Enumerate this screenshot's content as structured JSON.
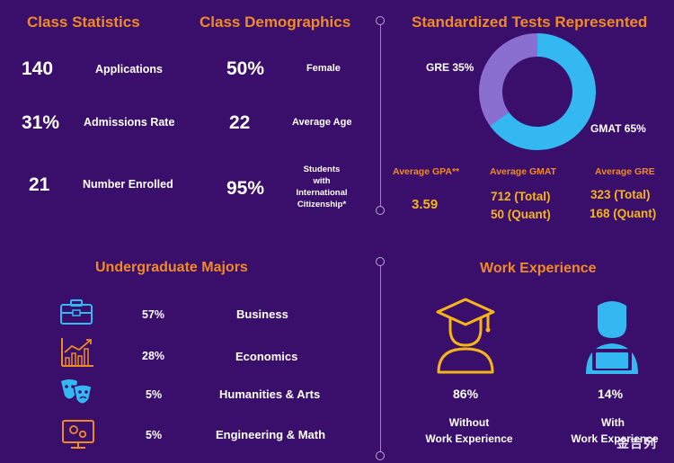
{
  "class_statistics": {
    "title": "Class Statistics",
    "rows": [
      {
        "value": "140",
        "label": "Applications"
      },
      {
        "value": "31%",
        "label": "Admissions Rate"
      },
      {
        "value": "21",
        "label": "Number Enrolled"
      }
    ]
  },
  "class_demographics": {
    "title": "Class Demographics",
    "rows": [
      {
        "value": "50%",
        "label": "Female"
      },
      {
        "value": "22",
        "label": "Average Age"
      },
      {
        "value": "95%",
        "label_lines": [
          "Students",
          "with",
          "International",
          "Citizenship*"
        ]
      }
    ]
  },
  "tests": {
    "title": "Standardized Tests Represented",
    "gre_label": "GRE 35%",
    "gmat_label": "GMAT 65%",
    "gre_share": 35,
    "gmat_share": 65,
    "gre_color": "#8a6fd1",
    "gmat_color": "#33b8f2",
    "columns": [
      {
        "header": "Average GPA**",
        "line1": "3.59",
        "line2": ""
      },
      {
        "header": "Average GMAT",
        "line1": "712 (Total)",
        "line2": "50 (Quant)"
      },
      {
        "header": "Average GRE",
        "line1": "323 (Total)",
        "line2": "168 (Quant)"
      }
    ]
  },
  "majors": {
    "title": "Undergraduate Majors",
    "rows": [
      {
        "icon": "briefcase-icon",
        "percent": "57%",
        "label": "Business"
      },
      {
        "icon": "bar-chart-icon",
        "percent": "28%",
        "label": "Economics"
      },
      {
        "icon": "theater-masks-icon",
        "percent": "5%",
        "label": "Humanities & Arts"
      },
      {
        "icon": "monitor-gears-icon",
        "percent": "5%",
        "label": "Engineering & Math"
      }
    ]
  },
  "work": {
    "title": "Work Experience",
    "items": [
      {
        "icon": "graduate-icon",
        "percent": "86%",
        "line1": "Without",
        "line2": "Work Experience"
      },
      {
        "icon": "professional-laptop-icon",
        "percent": "14%",
        "line1": "With",
        "line2": "Work Experience"
      }
    ]
  },
  "watermark": "金吉列",
  "colors": {
    "background": "#3a0f6b",
    "accent": "#f08a24",
    "gold": "#f5b41a",
    "icon_blue": "#33b8f2"
  }
}
